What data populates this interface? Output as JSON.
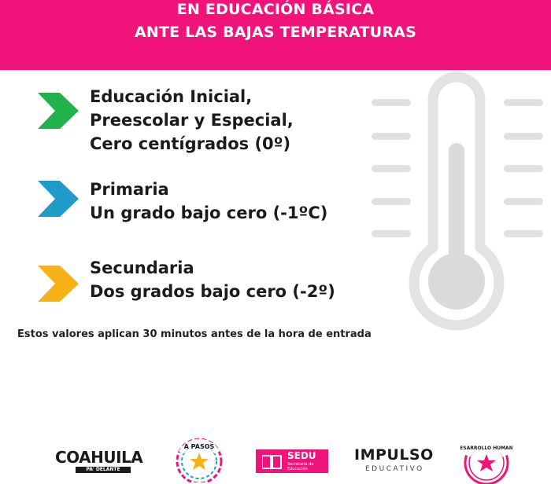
{
  "header": {
    "line1": "EN EDUCACIÓN BÁSICA",
    "line2": "ANTE LAS BAJAS TEMPERATURAS",
    "color": "#f0147a"
  },
  "items": [
    {
      "arrow_color": "#22b24c",
      "lines": [
        "Educación Inicial,",
        "Preescolar y  Especial,",
        "Cero  centígrados (0º)"
      ]
    },
    {
      "arrow_color": "#1e9bc8",
      "lines": [
        "Primaria",
        "Un grado bajo cero (-1ºC)"
      ]
    },
    {
      "arrow_color": "#f7b21a",
      "lines": [
        "Secundaria",
        "Dos grados bajo cero (-2º)"
      ]
    }
  ],
  "note": "Estos valores aplican 30 minutos antes de la hora de entrada",
  "thermometer": {
    "icon": "thermometer-icon",
    "color": "#d9d9d9"
  },
  "logos": {
    "coahuila": {
      "name": "COAHUILA",
      "tag": "PA' DELANTE"
    },
    "apasos": {
      "text": "A PASOS"
    },
    "sedu": {
      "name": "SEDU",
      "sub1": "Secretaría de",
      "sub2": "Educación"
    },
    "impulso": {
      "name": "IMPULSO",
      "sub": "EDUCATIVO"
    },
    "desarrollo": {
      "text": "DESARROLLO HUMANO"
    }
  }
}
